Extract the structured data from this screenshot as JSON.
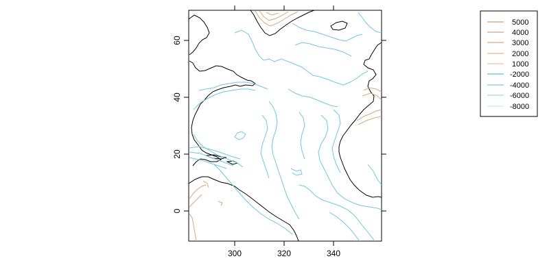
{
  "map": {
    "x_axis": {
      "ticks": [
        300,
        320,
        340
      ],
      "range": [
        281,
        360
      ]
    },
    "y_axis": {
      "ticks": [
        0,
        20,
        40,
        60
      ],
      "range": [
        -10.5,
        70.5
      ]
    },
    "colors": {
      "coastline": "#000000",
      "land_contours": "#d8a878",
      "ocean_contours": "#6cc8dc"
    }
  },
  "legend": {
    "position": "top-right",
    "entries": [
      {
        "label": "5000",
        "color": "#c89a6e"
      },
      {
        "label": "4000",
        "color": "#d2a37a"
      },
      {
        "label": "3000",
        "color": "#dba986"
      },
      {
        "label": "2000",
        "color": "#e3b392"
      },
      {
        "label": "1000",
        "color": "#ecc3a6"
      },
      {
        "label": "-2000",
        "color": "#5cc0d8"
      },
      {
        "label": "-4000",
        "color": "#7ccbe0"
      },
      {
        "label": "-6000",
        "color": "#9cd8e6"
      },
      {
        "label": "-8000",
        "color": "#c6ebf0"
      }
    ]
  }
}
